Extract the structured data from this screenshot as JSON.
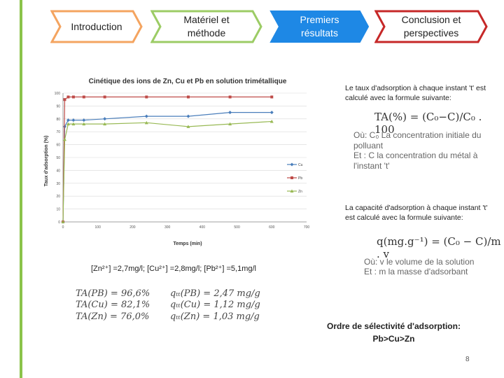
{
  "nav": {
    "steps": [
      {
        "label": "Introduction"
      },
      {
        "label": "Matériel et méthode",
        "line1": "Matériel et",
        "line2": "méthode"
      },
      {
        "label": "Premiers résultats",
        "line1": "Premiers",
        "line2": "résultats"
      },
      {
        "label": "Conclusion et perspectives",
        "line1": "Conclusion et",
        "line2": "perspectives"
      }
    ],
    "colors": {
      "orange": "#f4a460",
      "green": "#9ccc65",
      "blue": "#1e88e5",
      "red": "#c62828"
    }
  },
  "chart_data": {
    "type": "line",
    "title": "Cinétique des ions de Zn, Cu et Pb en solution trimétallique",
    "xlabel": "Temps (min)",
    "ylabel": "Taux d'adsorption (%)",
    "xlim": [
      0,
      700
    ],
    "ylim": [
      0,
      100
    ],
    "xticks": [
      "0",
      "100",
      "200",
      "300",
      "400",
      "500",
      "600",
      "700"
    ],
    "yticks": [
      "0",
      "10",
      "20",
      "30",
      "40",
      "50",
      "60",
      "70",
      "80",
      "90",
      "100"
    ],
    "legend_position": "right",
    "series": [
      {
        "name": "Cu",
        "color": "#4a7ebb",
        "marker": "diamond",
        "x": [
          0,
          5,
          15,
          30,
          60,
          120,
          240,
          360,
          480,
          600
        ],
        "y": [
          0,
          74,
          79,
          79,
          79,
          80,
          82,
          82,
          85,
          85
        ]
      },
      {
        "name": "Pb",
        "color": "#be4b48",
        "marker": "square",
        "x": [
          0,
          5,
          15,
          30,
          60,
          120,
          240,
          360,
          480,
          600
        ],
        "y": [
          0,
          95,
          97,
          97,
          97,
          97,
          97,
          97,
          97,
          97
        ]
      },
      {
        "name": "Zn",
        "color": "#98b954",
        "marker": "triangle",
        "x": [
          0,
          5,
          15,
          30,
          60,
          120,
          240,
          360,
          480,
          600
        ],
        "y": [
          0,
          64,
          76,
          76,
          76,
          76,
          77,
          74,
          76,
          78
        ]
      }
    ]
  },
  "conc": "[Zn²⁺] =2,7mg/l;  [Cu²⁺] =2,8mg/l;  [Pb²⁺] =5,1mg/l",
  "results": {
    "ta": [
      "TA(PB) = 96,6%",
      "TA(Cu) = 82,1%",
      "TA(Zn) = 76,0%"
    ],
    "q": [
      "qₜₜ(PB) = 2,47 mg/g",
      "qₜₜ(Cu) = 1,12 mg/g",
      "qₜₜ(Zn) = 1,03 mg/g"
    ]
  },
  "ta_text": {
    "intro": "Le taux d'adsorption à chaque instant 't' est calculé avec la formule suivante:",
    "formula": "TA(%) = (C₀−C)/C₀ . 100",
    "where1": "Où: C₀ La concentration initiale du polluant",
    "where2": "Et : C la concentration du métal à l'instant 't'"
  },
  "q_text": {
    "intro": "La capacité d'adsorption à chaque instant 't' est calculé avec la formule suivante:",
    "formula": "q(mg.g⁻¹) = (C₀ − C)/m . v",
    "where1": "Où: v le volume de la solution",
    "where2": "Et : m la masse d'adsorbant"
  },
  "order": {
    "line1": "Ordre de sélectivité d'adsorption:",
    "line2": "Pb>Cu>Zn"
  },
  "page_number": "8"
}
